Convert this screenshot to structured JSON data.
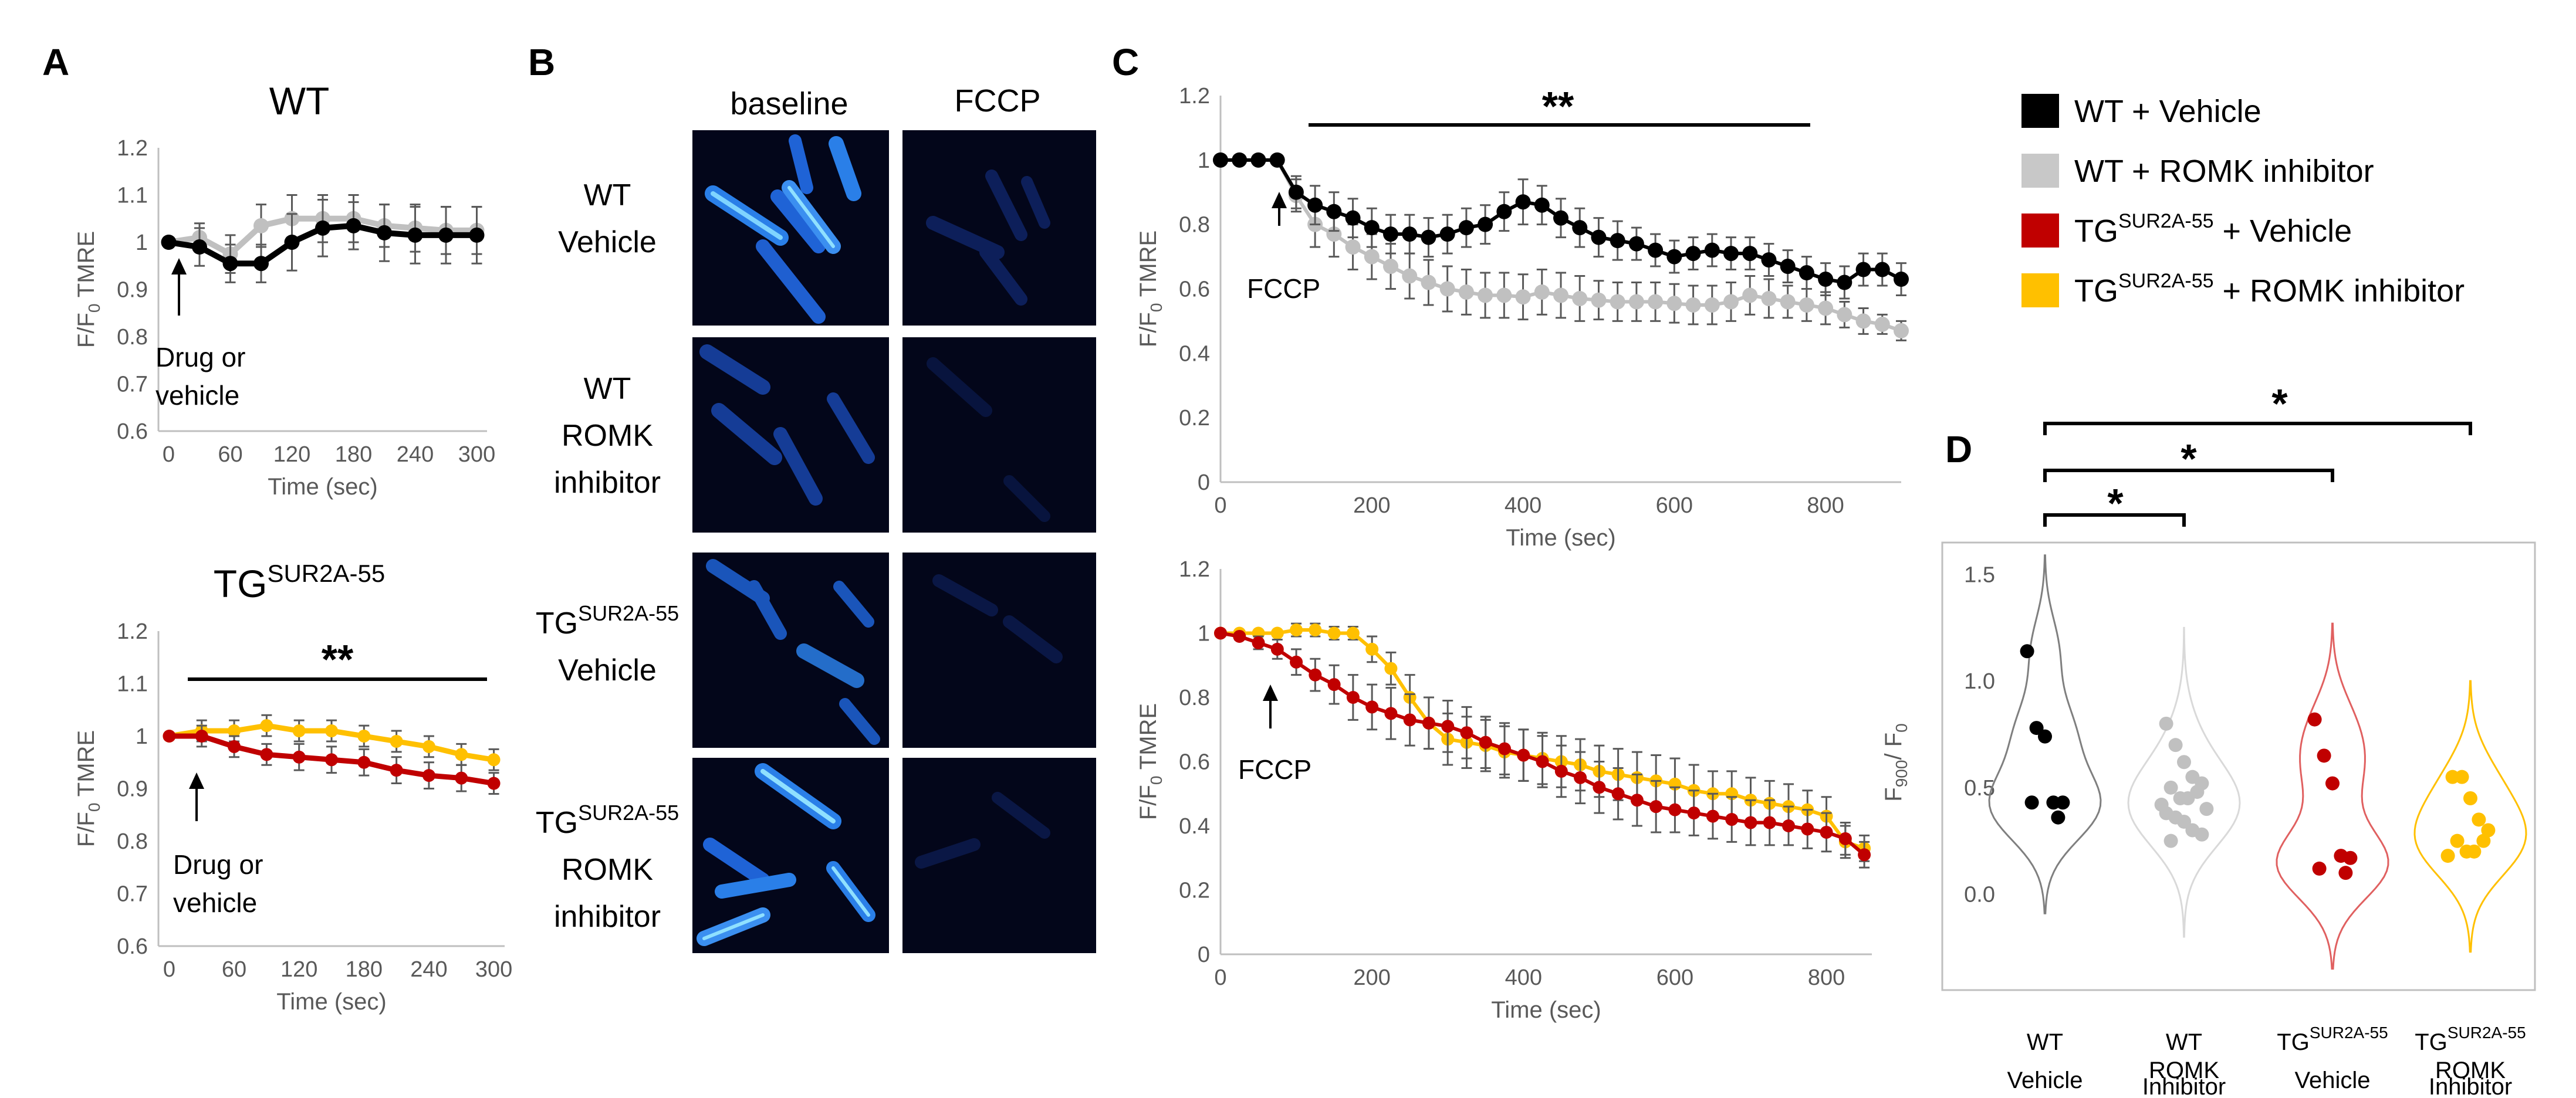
{
  "labels": {
    "A": "A",
    "B": "B",
    "C": "C",
    "D": "D",
    "title_wt": "WT",
    "title_tg": "TG",
    "tg_sup": "SUR2A-55",
    "ylabel_a": "F/F",
    "ylabel_sub": "0",
    "ylabel_suffix": " TMRE",
    "xlabel_time": "Time (sec)",
    "drug_l1": "Drug or",
    "drug_l2": "vehicle",
    "fccp": "FCCP",
    "sig2": "**",
    "sig1": "*",
    "col_baseline": "baseline",
    "col_fccp": "FCCP",
    "row_wt": "WT",
    "row_vehicle": "Vehicle",
    "row_romk": "ROMK",
    "row_inhibitor": "inhibitor",
    "d_ylabel": "F",
    "d_ylabel_sub1": "900",
    "d_ylabel_mid": "/ F",
    "d_ylabel_sub2": "0",
    "d_inhibitor": "Inhibitor"
  },
  "legend": [
    {
      "label_pre": "WT + Vehicle",
      "sup": "",
      "label_post": "",
      "color": "#000000"
    },
    {
      "label_pre": "WT + ROMK inhibitor",
      "sup": "",
      "label_post": "",
      "color": "#c8c8c8"
    },
    {
      "label_pre": "TG",
      "sup": "SUR2A-55",
      "label_post": " + Vehicle",
      "color": "#c00000"
    },
    {
      "label_pre": "TG",
      "sup": "SUR2A-55",
      "label_post": " + ROMK inhibitor",
      "color": "#ffc000"
    }
  ],
  "colors": {
    "wt_vehicle": "#000000",
    "wt_romk": "#c0c0c0",
    "tg_vehicle": "#c00000",
    "tg_romk": "#ffc000",
    "wt_vehicle_violin": "#7f7f7f",
    "wt_romk_violin": "#d9d9d9",
    "tg_vehicle_violin": "#e06060",
    "tg_romk_violin": "#ffc000"
  },
  "chart_data": [
    {
      "id": "A-top",
      "type": "line",
      "title": "WT",
      "xlabel": "Time (sec)",
      "ylabel": "F/F0 TMRE",
      "xlim": [
        -10,
        310
      ],
      "ylim": [
        0.6,
        1.2
      ],
      "xticks": [
        0,
        60,
        120,
        180,
        240,
        300
      ],
      "yticks": [
        0.6,
        0.7,
        0.8,
        0.9,
        1,
        1.1,
        1.2
      ],
      "series": [
        {
          "key": "wt_romk",
          "x": [
            0,
            30,
            60,
            90,
            120,
            150,
            180,
            210,
            240,
            270,
            300
          ],
          "y": [
            1.0,
            1.01,
            0.975,
            1.035,
            1.05,
            1.05,
            1.05,
            1.035,
            1.03,
            1.025,
            1.025
          ],
          "err": [
            0.0,
            0.03,
            0.04,
            0.045,
            0.05,
            0.05,
            0.05,
            0.045,
            0.05,
            0.05,
            0.05
          ]
        },
        {
          "key": "wt_vehicle",
          "x": [
            0,
            30,
            60,
            90,
            120,
            150,
            180,
            210,
            240,
            270,
            300
          ],
          "y": [
            1.0,
            0.99,
            0.955,
            0.955,
            1.0,
            1.03,
            1.035,
            1.02,
            1.015,
            1.015,
            1.015
          ],
          "err": [
            0.0,
            0.04,
            0.04,
            0.04,
            0.06,
            0.06,
            0.05,
            0.06,
            0.06,
            0.06,
            0.06
          ]
        }
      ]
    },
    {
      "id": "A-bottom",
      "type": "line",
      "title": "TGSUR2A-55",
      "xlabel": "Time (sec)",
      "ylabel": "F/F0 TMRE",
      "xlim": [
        -10,
        310
      ],
      "ylim": [
        0.6,
        1.2
      ],
      "xticks": [
        0,
        60,
        120,
        180,
        240,
        300
      ],
      "yticks": [
        0.6,
        0.7,
        0.8,
        0.9,
        1,
        1.1,
        1.2
      ],
      "series": [
        {
          "key": "tg_romk",
          "x": [
            0,
            30,
            60,
            90,
            120,
            150,
            180,
            210,
            240,
            270,
            300
          ],
          "y": [
            1.0,
            1.01,
            1.01,
            1.02,
            1.01,
            1.01,
            1.0,
            0.99,
            0.98,
            0.965,
            0.955
          ],
          "err": [
            0.0,
            0.02,
            0.02,
            0.02,
            0.02,
            0.02,
            0.02,
            0.02,
            0.02,
            0.02,
            0.02
          ]
        },
        {
          "key": "tg_vehicle",
          "x": [
            0,
            30,
            60,
            90,
            120,
            150,
            180,
            210,
            240,
            270,
            300
          ],
          "y": [
            1.0,
            1.0,
            0.98,
            0.965,
            0.96,
            0.955,
            0.95,
            0.935,
            0.925,
            0.92,
            0.91
          ],
          "err": [
            0.0,
            0.02,
            0.02,
            0.02,
            0.025,
            0.025,
            0.025,
            0.025,
            0.025,
            0.025,
            0.02
          ]
        }
      ]
    },
    {
      "id": "C-top",
      "type": "line",
      "xlabel": "Time (sec)",
      "ylabel": "F/F0 TMRE",
      "xlim": [
        0,
        900
      ],
      "ylim": [
        0,
        1.2
      ],
      "xticks": [
        0,
        200,
        400,
        600,
        800
      ],
      "yticks": [
        0,
        0.2,
        0.4,
        0.6,
        0.8,
        1,
        1.2
      ],
      "series": [
        {
          "key": "wt_romk",
          "x": [
            0,
            25,
            50,
            75,
            100,
            125,
            150,
            175,
            200,
            225,
            250,
            275,
            300,
            325,
            350,
            375,
            400,
            425,
            450,
            475,
            500,
            525,
            550,
            575,
            600,
            625,
            650,
            675,
            700,
            725,
            750,
            775,
            800,
            825,
            850,
            875,
            900
          ],
          "y": [
            1.0,
            1.0,
            1.0,
            1.0,
            0.89,
            0.8,
            0.77,
            0.73,
            0.7,
            0.67,
            0.64,
            0.62,
            0.6,
            0.59,
            0.58,
            0.58,
            0.575,
            0.59,
            0.58,
            0.57,
            0.565,
            0.56,
            0.56,
            0.56,
            0.555,
            0.55,
            0.55,
            0.56,
            0.58,
            0.57,
            0.56,
            0.55,
            0.54,
            0.52,
            0.5,
            0.49,
            0.47
          ],
          "err": [
            0.0,
            0.0,
            0.0,
            0.0,
            0.05,
            0.07,
            0.07,
            0.07,
            0.07,
            0.07,
            0.07,
            0.07,
            0.07,
            0.07,
            0.07,
            0.07,
            0.07,
            0.07,
            0.07,
            0.07,
            0.06,
            0.06,
            0.06,
            0.06,
            0.06,
            0.06,
            0.06,
            0.06,
            0.06,
            0.06,
            0.05,
            0.05,
            0.05,
            0.04,
            0.04,
            0.03,
            0.03
          ]
        },
        {
          "key": "wt_vehicle",
          "x": [
            0,
            25,
            50,
            75,
            100,
            125,
            150,
            175,
            200,
            225,
            250,
            275,
            300,
            325,
            350,
            375,
            400,
            425,
            450,
            475,
            500,
            525,
            550,
            575,
            600,
            625,
            650,
            675,
            700,
            725,
            750,
            775,
            800,
            825,
            850,
            875,
            900
          ],
          "y": [
            1.0,
            1.0,
            1.0,
            1.0,
            0.9,
            0.86,
            0.84,
            0.82,
            0.79,
            0.77,
            0.77,
            0.76,
            0.77,
            0.79,
            0.8,
            0.84,
            0.87,
            0.86,
            0.82,
            0.79,
            0.76,
            0.75,
            0.74,
            0.72,
            0.7,
            0.71,
            0.72,
            0.71,
            0.71,
            0.69,
            0.67,
            0.65,
            0.63,
            0.62,
            0.66,
            0.66,
            0.63
          ],
          "err": [
            0.0,
            0.0,
            0.0,
            0.0,
            0.05,
            0.06,
            0.06,
            0.06,
            0.06,
            0.06,
            0.06,
            0.06,
            0.06,
            0.06,
            0.06,
            0.06,
            0.07,
            0.06,
            0.06,
            0.06,
            0.06,
            0.06,
            0.05,
            0.05,
            0.05,
            0.05,
            0.05,
            0.05,
            0.05,
            0.05,
            0.05,
            0.05,
            0.05,
            0.05,
            0.05,
            0.05,
            0.05
          ]
        }
      ]
    },
    {
      "id": "C-bottom",
      "type": "line",
      "xlabel": "Time (sec)",
      "ylabel": "F/F0 TMRE",
      "xlim": [
        0,
        860
      ],
      "ylim": [
        0,
        1.2
      ],
      "xticks": [
        0,
        200,
        400,
        600,
        800
      ],
      "yticks": [
        0,
        0.2,
        0.4,
        0.6,
        0.8,
        1,
        1.2
      ],
      "series": [
        {
          "key": "tg_romk",
          "x": [
            0,
            25,
            50,
            75,
            100,
            125,
            150,
            175,
            200,
            225,
            250,
            275,
            300,
            325,
            350,
            375,
            400,
            425,
            450,
            475,
            500,
            525,
            550,
            575,
            600,
            625,
            650,
            675,
            700,
            725,
            750,
            775,
            800,
            825,
            850
          ],
          "y": [
            1.0,
            1.0,
            1.0,
            1.0,
            1.01,
            1.01,
            1.0,
            1.0,
            0.95,
            0.89,
            0.8,
            0.72,
            0.67,
            0.66,
            0.65,
            0.63,
            0.62,
            0.61,
            0.6,
            0.59,
            0.57,
            0.56,
            0.55,
            0.54,
            0.53,
            0.51,
            0.5,
            0.5,
            0.48,
            0.47,
            0.46,
            0.45,
            0.43,
            0.35,
            0.33
          ],
          "err": [
            0.0,
            0.0,
            0.0,
            0.0,
            0.02,
            0.02,
            0.02,
            0.02,
            0.04,
            0.05,
            0.07,
            0.08,
            0.08,
            0.08,
            0.08,
            0.08,
            0.08,
            0.08,
            0.08,
            0.08,
            0.08,
            0.08,
            0.08,
            0.08,
            0.08,
            0.08,
            0.07,
            0.07,
            0.07,
            0.07,
            0.07,
            0.06,
            0.06,
            0.05,
            0.04
          ]
        },
        {
          "key": "tg_vehicle",
          "x": [
            0,
            25,
            50,
            75,
            100,
            125,
            150,
            175,
            200,
            225,
            250,
            275,
            300,
            325,
            350,
            375,
            400,
            425,
            450,
            475,
            500,
            525,
            550,
            575,
            600,
            625,
            650,
            675,
            700,
            725,
            750,
            775,
            800,
            825,
            850
          ],
          "y": [
            1.0,
            0.99,
            0.97,
            0.95,
            0.91,
            0.87,
            0.84,
            0.8,
            0.77,
            0.75,
            0.73,
            0.72,
            0.71,
            0.69,
            0.66,
            0.64,
            0.62,
            0.6,
            0.57,
            0.55,
            0.52,
            0.5,
            0.48,
            0.46,
            0.45,
            0.44,
            0.43,
            0.42,
            0.41,
            0.41,
            0.4,
            0.39,
            0.38,
            0.36,
            0.31
          ],
          "err": [
            0.0,
            0.01,
            0.02,
            0.03,
            0.04,
            0.05,
            0.06,
            0.07,
            0.07,
            0.08,
            0.08,
            0.08,
            0.08,
            0.08,
            0.08,
            0.08,
            0.08,
            0.08,
            0.08,
            0.08,
            0.08,
            0.08,
            0.08,
            0.08,
            0.07,
            0.07,
            0.07,
            0.07,
            0.07,
            0.07,
            0.06,
            0.06,
            0.06,
            0.05,
            0.04
          ]
        }
      ]
    },
    {
      "id": "D",
      "type": "violin",
      "ylabel": "F900 / F0",
      "ylim": [
        -0.45,
        1.65
      ],
      "yticks": [
        0.0,
        0.5,
        1.0,
        1.5
      ],
      "groups": [
        {
          "key": "wt_vehicle",
          "label_l1": "WT",
          "label_l2": "Vehicle",
          "points": [
            1.14,
            0.78,
            0.74,
            0.43,
            0.43,
            0.43,
            0.36
          ]
        },
        {
          "key": "wt_romk",
          "label_l1": "WT",
          "label_l2": "ROMK",
          "label_l3": "Inhibitor",
          "points": [
            0.8,
            0.7,
            0.62,
            0.55,
            0.52,
            0.5,
            0.48,
            0.45,
            0.45,
            0.42,
            0.4,
            0.38,
            0.36,
            0.34,
            0.3,
            0.28,
            0.25
          ]
        },
        {
          "key": "tg_vehicle",
          "label_l1": "TG",
          "label_sup": "SUR2A-55",
          "label_l2": "Vehicle",
          "points": [
            0.82,
            0.65,
            0.52,
            0.18,
            0.17,
            0.12,
            0.1
          ]
        },
        {
          "key": "tg_romk",
          "label_l1": "TG",
          "label_sup": "SUR2A-55",
          "label_l2": "ROMK",
          "label_l3": "Inhibitor",
          "points": [
            0.55,
            0.55,
            0.45,
            0.35,
            0.3,
            0.25,
            0.25,
            0.2,
            0.2,
            0.18
          ]
        }
      ]
    }
  ]
}
